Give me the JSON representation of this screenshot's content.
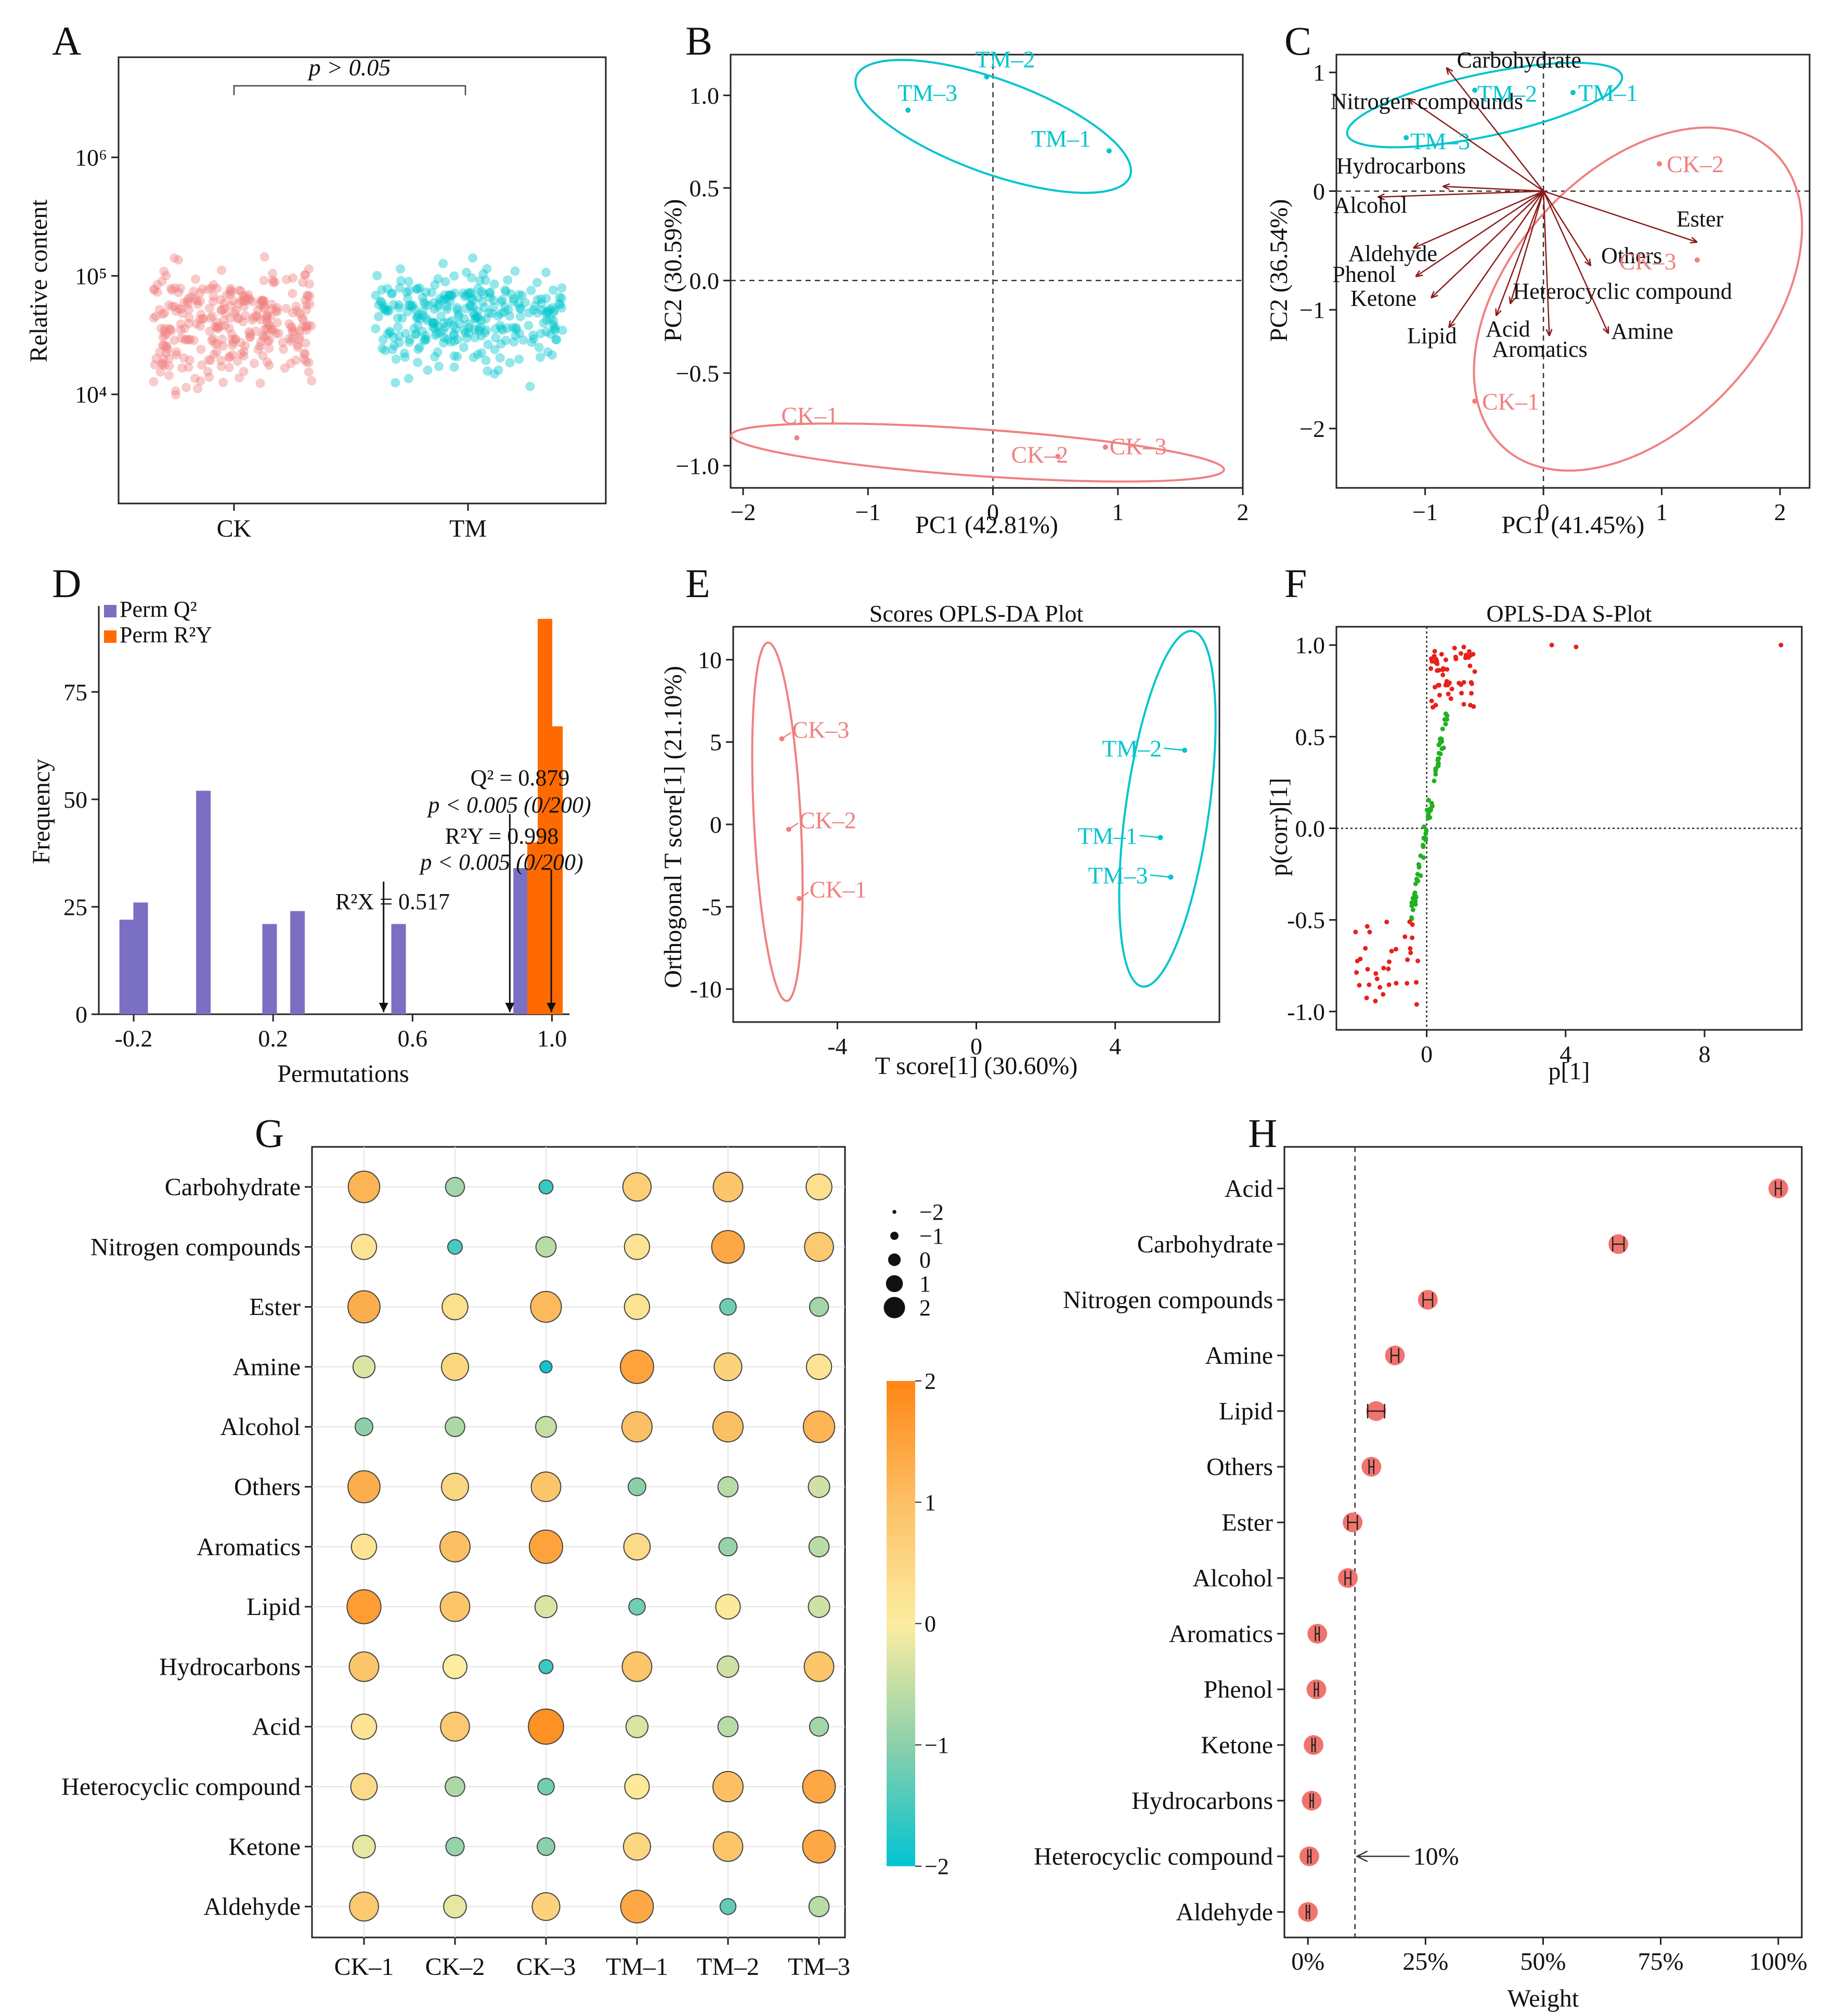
{
  "colors": {
    "ck": "#f08080",
    "tm": "#00c5cd",
    "perm_q2": "#7b6fc4",
    "perm_r2y": "#ff6a00",
    "arrow": "#8b1a1a",
    "pos": "#e8201a",
    "neg": "#22b022"
  },
  "panels": {
    "A": "A",
    "B": "B",
    "C": "C",
    "D": "D",
    "E": "E",
    "F": "F",
    "G": "G",
    "H": "H"
  },
  "chart_data": [
    {
      "panel": "A",
      "type": "scatter",
      "ylabel": "Relative content",
      "yscale": "log",
      "categories": [
        "CK",
        "TM"
      ],
      "ytick_labels": [
        "10⁴",
        "10⁵",
        "10⁶"
      ],
      "ytick_values": [
        10000,
        100000,
        1000000
      ],
      "annotation": "p > 0.05",
      "ylim": [
        1200,
        7000000
      ],
      "series": [
        {
          "name": "CK",
          "n_points": 300,
          "median": 40000
        },
        {
          "name": "TM",
          "n_points": 300,
          "median": 45000
        }
      ]
    },
    {
      "panel": "B",
      "type": "scatter",
      "xlabel": "PC1 (42.81%)",
      "ylabel": "PC2 (30.59%)",
      "xlim": [
        -2.1,
        2.0
      ],
      "ylim": [
        -1.12,
        1.22
      ],
      "xticks": [
        -2,
        -1,
        0,
        1,
        2
      ],
      "yticks": [
        -1.0,
        -0.5,
        0.0,
        0.5,
        1.0
      ],
      "xtick_labels": [
        "−2",
        "−1",
        "0",
        "1",
        "2"
      ],
      "ytick_labels": [
        "−1.0",
        "−0.5",
        "0.0",
        "0.5",
        "1.0"
      ],
      "points": [
        {
          "label": "TM–3",
          "x": -0.68,
          "y": 0.92,
          "group": "TM"
        },
        {
          "label": "TM–2",
          "x": -0.05,
          "y": 1.1,
          "group": "TM"
        },
        {
          "label": "TM–1",
          "x": 0.93,
          "y": 0.7,
          "group": "TM"
        },
        {
          "label": "CK–1",
          "x": -1.57,
          "y": -0.85,
          "group": "CK"
        },
        {
          "label": "CK–2",
          "x": 0.52,
          "y": -0.95,
          "group": "CK"
        },
        {
          "label": "CK–3",
          "x": 0.9,
          "y": -0.9,
          "group": "CK"
        }
      ]
    },
    {
      "panel": "C",
      "type": "scatter",
      "xlabel": "PC1 (41.45%)",
      "ylabel": "PC2 (36.54%)",
      "xlim": [
        -1.75,
        2.25
      ],
      "ylim": [
        -2.5,
        1.15
      ],
      "xticks": [
        -1,
        0,
        1,
        2
      ],
      "yticks": [
        -2,
        -1,
        0,
        1
      ],
      "xtick_labels": [
        "−1",
        "0",
        "1",
        "2"
      ],
      "ytick_labels": [
        "−2",
        "−1",
        "0",
        "1"
      ],
      "points": [
        {
          "label": "TM–2",
          "x": -0.58,
          "y": 0.85,
          "group": "TM"
        },
        {
          "label": "TM–1",
          "x": 0.25,
          "y": 0.83,
          "group": "TM"
        },
        {
          "label": "TM–3",
          "x": -1.16,
          "y": 0.45,
          "group": "TM"
        },
        {
          "label": "CK–2",
          "x": 0.98,
          "y": 0.23,
          "group": "CK"
        },
        {
          "label": "CK–3",
          "x": 1.3,
          "y": -0.58,
          "group": "CK"
        },
        {
          "label": "CK–1",
          "x": -0.58,
          "y": -1.77,
          "group": "CK"
        }
      ],
      "loadings": [
        {
          "name": "Carbohydrate",
          "x": -0.82,
          "y": 1.04
        },
        {
          "name": "Nitrogen compounds",
          "x": -1.14,
          "y": 0.78
        },
        {
          "name": "Hydrocarbons",
          "x": -0.85,
          "y": 0.04
        },
        {
          "name": "Alcohol",
          "x": -1.4,
          "y": -0.05
        },
        {
          "name": "Aldehyde",
          "x": -1.1,
          "y": -0.48
        },
        {
          "name": "Phenol",
          "x": -1.08,
          "y": -0.72
        },
        {
          "name": "Ketone",
          "x": -0.95,
          "y": -0.9
        },
        {
          "name": "Lipid",
          "x": -0.8,
          "y": -1.15
        },
        {
          "name": "Acid",
          "x": -0.4,
          "y": -1.05
        },
        {
          "name": "Heterocyclic compound",
          "x": -0.28,
          "y": -0.95
        },
        {
          "name": "Aromatics",
          "x": 0.05,
          "y": -1.22
        },
        {
          "name": "Amine",
          "x": 0.55,
          "y": -1.2
        },
        {
          "name": "Others",
          "x": 0.4,
          "y": -0.63
        },
        {
          "name": "Ester",
          "x": 1.3,
          "y": -0.43
        }
      ]
    },
    {
      "panel": "D",
      "type": "bar",
      "xlabel": "Permutations",
      "ylabel": "Frequency",
      "xlim": [
        -0.3,
        1.05
      ],
      "ylim": [
        0,
        95
      ],
      "xticks": [
        -0.2,
        0.2,
        0.6,
        1.0
      ],
      "yticks": [
        0,
        25,
        50,
        75
      ],
      "xtick_labels": [
        "-0.2",
        "0.2",
        "0.6",
        "1.0"
      ],
      "ytick_labels": [
        "0",
        "25",
        "50",
        "75"
      ],
      "legend": [
        "Perm Q²",
        "Perm R²Y"
      ],
      "series": [
        {
          "name": "Perm Q²",
          "bins": [
            [
              -0.22,
              22
            ],
            [
              -0.18,
              26
            ],
            [
              0.0,
              52
            ],
            [
              0.19,
              21
            ],
            [
              0.27,
              24
            ],
            [
              0.56,
              21
            ],
            [
              0.91,
              34
            ]
          ]
        },
        {
          "name": "Perm R²Y",
          "bins": [
            [
              0.95,
              40
            ],
            [
              0.98,
              92
            ],
            [
              1.01,
              67
            ]
          ]
        }
      ],
      "annotations": {
        "q2": "Q² = 0.879",
        "q2_p": "p < 0.005 (0/200)",
        "r2y": "R²Y = 0.998",
        "r2y_p": "p < 0.005 (0/200)",
        "r2x": "R²X = 0.517"
      },
      "reference_values": {
        "q2": 0.879,
        "r2y": 0.998,
        "r2x": 0.517
      }
    },
    {
      "panel": "E",
      "type": "scatter",
      "title": "Scores OPLS-DA Plot",
      "xlabel": "T score[1] (30.60%)",
      "ylabel": "Orthogonal T score[1] (21.10%)",
      "xlim": [
        -7,
        7
      ],
      "ylim": [
        -12,
        12
      ],
      "xticks": [
        -4,
        0,
        4
      ],
      "yticks": [
        -10,
        -5,
        0,
        5,
        10
      ],
      "xtick_labels": [
        "-4",
        "0",
        "4"
      ],
      "ytick_labels": [
        "-10",
        "-5",
        "0",
        "5",
        "10"
      ],
      "points": [
        {
          "label": "CK–3",
          "x": -5.6,
          "y": 5.2,
          "group": "CK"
        },
        {
          "label": "CK–2",
          "x": -5.4,
          "y": -0.3,
          "group": "CK"
        },
        {
          "label": "CK–1",
          "x": -5.1,
          "y": -4.5,
          "group": "CK"
        },
        {
          "label": "TM–2",
          "x": 6.0,
          "y": 4.5,
          "group": "TM"
        },
        {
          "label": "TM–1",
          "x": 5.3,
          "y": -0.8,
          "group": "TM"
        },
        {
          "label": "TM–3",
          "x": 5.6,
          "y": -3.2,
          "group": "TM"
        }
      ]
    },
    {
      "panel": "F",
      "type": "scatter",
      "title": "OPLS-DA S-Plot",
      "xlabel": "p[1]",
      "ylabel": "p(corr)[1]",
      "xlim": [
        -2.6,
        10.8
      ],
      "ylim": [
        -1.1,
        1.1
      ],
      "xticks": [
        0,
        4,
        8
      ],
      "yticks": [
        -1.0,
        -0.5,
        0.0,
        0.5,
        1.0
      ],
      "xtick_labels": [
        "0",
        "4",
        "8"
      ],
      "ytick_labels": [
        "-1.0",
        "-0.5",
        "0.0",
        "0.5",
        "1.0"
      ],
      "series": [
        {
          "name": "positive",
          "n_points": 55,
          "range_corr": [
            0.65,
            1.0
          ]
        },
        {
          "name": "middle",
          "n_points": 80,
          "range_corr": [
            -0.5,
            0.65
          ]
        },
        {
          "name": "negative",
          "n_points": 35,
          "range_corr": [
            -0.97,
            -0.5
          ]
        }
      ],
      "outliers": [
        [
          10.2,
          1.0
        ],
        [
          4.3,
          0.99
        ],
        [
          3.6,
          1.0
        ]
      ]
    },
    {
      "panel": "G",
      "type": "heatmap",
      "rows": [
        "Carbohydrate",
        "Nitrogen compounds",
        "Ester",
        "Amine",
        "Alcohol",
        "Others",
        "Aromatics",
        "Lipid",
        "Hydrocarbons",
        "Acid",
        "Heterocyclic compound",
        "Ketone",
        "Aldehyde"
      ],
      "columns": [
        "CK–1",
        "CK–2",
        "CK–3",
        "TM–1",
        "TM–2",
        "TM–3"
      ],
      "values": [
        [
          1.2,
          -0.8,
          -1.6,
          0.7,
          0.9,
          0.3
        ],
        [
          0.2,
          -1.5,
          -0.6,
          0.2,
          1.4,
          0.8
        ],
        [
          1.3,
          0.3,
          1.1,
          0.2,
          -1.2,
          -0.8
        ],
        [
          -0.3,
          0.5,
          -1.9,
          1.5,
          0.6,
          0.2
        ],
        [
          -1.0,
          -0.7,
          -0.5,
          1.0,
          1.0,
          1.2
        ],
        [
          1.3,
          0.5,
          0.9,
          -1.0,
          -0.6,
          -0.4
        ],
        [
          0.2,
          1.0,
          1.5,
          0.4,
          -0.9,
          -0.6
        ],
        [
          1.6,
          0.9,
          -0.3,
          -1.2,
          0.1,
          -0.4
        ],
        [
          0.9,
          0.0,
          -1.6,
          0.9,
          -0.4,
          0.9
        ],
        [
          0.2,
          0.8,
          1.8,
          -0.3,
          -0.6,
          -0.8
        ],
        [
          0.4,
          -0.7,
          -1.2,
          0.1,
          1.0,
          1.4
        ],
        [
          -0.2,
          -0.9,
          -1.0,
          0.5,
          0.9,
          1.4
        ],
        [
          0.8,
          -0.2,
          0.6,
          1.4,
          -1.3,
          -0.6
        ]
      ],
      "size_legend_labels": [
        "−2",
        "−1",
        "0",
        "1",
        "2"
      ],
      "size_legend_values": [
        -2,
        -1,
        0,
        1,
        2
      ],
      "color_legend_labels": [
        "2",
        "1",
        "0",
        "−1",
        "−2"
      ],
      "color_legend_values": [
        2,
        1,
        0,
        -1,
        -2
      ],
      "vlim": [
        -2,
        2
      ]
    },
    {
      "panel": "H",
      "type": "scatter",
      "xlabel": "Weight",
      "categories": [
        "Acid",
        "Carbohydrate",
        "Nitrogen compounds",
        "Amine",
        "Lipid",
        "Others",
        "Ester",
        "Alcohol",
        "Aromatics",
        "Phenol",
        "Ketone",
        "Hydrocarbons",
        "Heterocyclic compound",
        "Aldehyde"
      ],
      "values": [
        1.0,
        0.66,
        0.255,
        0.185,
        0.145,
        0.135,
        0.095,
        0.085,
        0.02,
        0.018,
        0.012,
        0.008,
        0.003,
        0.0
      ],
      "errors": [
        0.006,
        0.012,
        0.01,
        0.008,
        0.018,
        0.005,
        0.01,
        0.006,
        0.004,
        0.004,
        0.003,
        0.003,
        0.002,
        0.002
      ],
      "xticks": [
        0,
        0.25,
        0.5,
        0.75,
        1.0
      ],
      "xtick_labels": [
        "0%",
        "25%",
        "50%",
        "75%",
        "100%"
      ],
      "xlim": [
        -0.05,
        1.05
      ],
      "threshold": 0.1,
      "threshold_label": "10%"
    }
  ]
}
